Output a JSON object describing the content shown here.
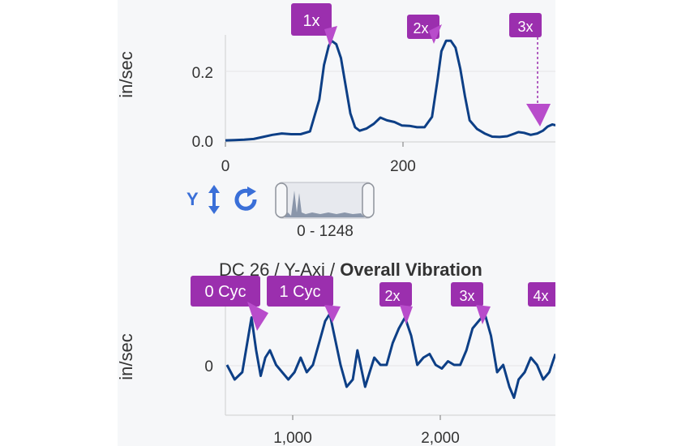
{
  "spectrum_chart": {
    "ylabel": "in/sec",
    "y_ticks": [
      "0.2",
      "0.0"
    ],
    "x_ticks": [
      "0",
      "200"
    ],
    "markers": [
      "1x",
      "2x",
      "3x"
    ],
    "chart_data": {
      "type": "line",
      "title": "",
      "xlabel": "",
      "ylabel": "in/sec",
      "xlim": [
        0,
        360
      ],
      "ylim": [
        0,
        0.3
      ],
      "series": [
        {
          "values": [
            [
              0,
              0.002
            ],
            [
              10,
              0.003
            ],
            [
              20,
              0.004
            ],
            [
              30,
              0.006
            ],
            [
              40,
              0.012
            ],
            [
              50,
              0.018
            ],
            [
              60,
              0.022
            ],
            [
              70,
              0.02
            ],
            [
              80,
              0.02
            ],
            [
              90,
              0.028
            ],
            [
              100,
              0.12
            ],
            [
              105,
              0.22
            ],
            [
              110,
              0.275
            ],
            [
              113,
              0.29
            ],
            [
              118,
              0.28
            ],
            [
              123,
              0.24
            ],
            [
              128,
              0.16
            ],
            [
              133,
              0.08
            ],
            [
              138,
              0.04
            ],
            [
              143,
              0.03
            ],
            [
              150,
              0.036
            ],
            [
              158,
              0.05
            ],
            [
              165,
              0.068
            ],
            [
              172,
              0.06
            ],
            [
              180,
              0.055
            ],
            [
              188,
              0.045
            ],
            [
              196,
              0.044
            ],
            [
              204,
              0.04
            ],
            [
              212,
              0.04
            ],
            [
              220,
              0.07
            ],
            [
              226,
              0.18
            ],
            [
              230,
              0.26
            ],
            [
              235,
              0.29
            ],
            [
              240,
              0.29
            ],
            [
              245,
              0.27
            ],
            [
              250,
              0.21
            ],
            [
              255,
              0.13
            ],
            [
              260,
              0.06
            ],
            [
              268,
              0.035
            ],
            [
              276,
              0.022
            ],
            [
              284,
              0.013
            ],
            [
              292,
              0.012
            ],
            [
              300,
              0.014
            ],
            [
              306,
              0.02
            ],
            [
              312,
              0.026
            ],
            [
              318,
              0.024
            ],
            [
              325,
              0.018
            ],
            [
              332,
              0.022
            ],
            [
              338,
              0.03
            ],
            [
              343,
              0.042
            ],
            [
              348,
              0.048
            ],
            [
              353,
              0.045
            ],
            [
              360,
              0.035
            ]
          ]
        }
      ]
    }
  },
  "controls": {
    "axis_label": "Y",
    "range_label": "0 - 1248"
  },
  "waveform_chart": {
    "title_light": "DC 26 / Y-Axi /",
    "title_bold": "Overall Vibration",
    "ylabel": "in/sec",
    "y_ticks": [
      "0"
    ],
    "x_ticks": [
      "1,000",
      "2,000"
    ],
    "markers": [
      "0 Cyc",
      "1 Cyc",
      "2x",
      "3x",
      "4x"
    ],
    "chart_data": {
      "type": "line",
      "title": "DC 26 / Y-Axi / Overall Vibration",
      "xlabel": "",
      "ylabel": "in/sec",
      "xlim": [
        590,
        2740
      ],
      "ylim": [
        -0.1,
        0.1
      ],
      "series": [
        {
          "values": [
            [
              600,
              0
            ],
            [
              650,
              -0.02
            ],
            [
              700,
              -0.01
            ],
            [
              740,
              0.04
            ],
            [
              760,
              0.065
            ],
            [
              790,
              0.02
            ],
            [
              820,
              -0.015
            ],
            [
              850,
              0.01
            ],
            [
              880,
              0.02
            ],
            [
              920,
              0.0
            ],
            [
              960,
              -0.01
            ],
            [
              1000,
              -0.02
            ],
            [
              1040,
              -0.01
            ],
            [
              1080,
              0.01
            ],
            [
              1120,
              -0.01
            ],
            [
              1160,
              0.0
            ],
            [
              1200,
              0.03
            ],
            [
              1240,
              0.06
            ],
            [
              1270,
              0.07
            ],
            [
              1300,
              0.04
            ],
            [
              1340,
              0.0
            ],
            [
              1380,
              -0.03
            ],
            [
              1420,
              -0.02
            ],
            [
              1450,
              0.02
            ],
            [
              1470,
              0.0
            ],
            [
              1500,
              -0.03
            ],
            [
              1530,
              -0.01
            ],
            [
              1560,
              0.01
            ],
            [
              1600,
              0.0
            ],
            [
              1640,
              0.0
            ],
            [
              1680,
              0.03
            ],
            [
              1720,
              0.05
            ],
            [
              1760,
              0.065
            ],
            [
              1800,
              0.04
            ],
            [
              1840,
              0.0
            ],
            [
              1880,
              0.01
            ],
            [
              1920,
              0.015
            ],
            [
              1960,
              0.0
            ],
            [
              2000,
              -0.005
            ],
            [
              2040,
              0.005
            ],
            [
              2080,
              0.0
            ],
            [
              2120,
              0.0
            ],
            [
              2160,
              0.02
            ],
            [
              2200,
              0.05
            ],
            [
              2240,
              0.06
            ],
            [
              2280,
              0.07
            ],
            [
              2320,
              0.04
            ],
            [
              2360,
              -0.01
            ],
            [
              2400,
              0.0
            ],
            [
              2440,
              -0.03
            ],
            [
              2470,
              -0.045
            ],
            [
              2500,
              -0.02
            ],
            [
              2540,
              -0.01
            ],
            [
              2580,
              0.01
            ],
            [
              2620,
              0.0
            ],
            [
              2660,
              -0.02
            ],
            [
              2700,
              -0.01
            ],
            [
              2740,
              0.015
            ]
          ]
        }
      ]
    }
  },
  "colors": {
    "line": "#0d3f86",
    "marker": "#9b2fae",
    "control": "#3a6fd8",
    "panel": "#f6f7f9"
  }
}
